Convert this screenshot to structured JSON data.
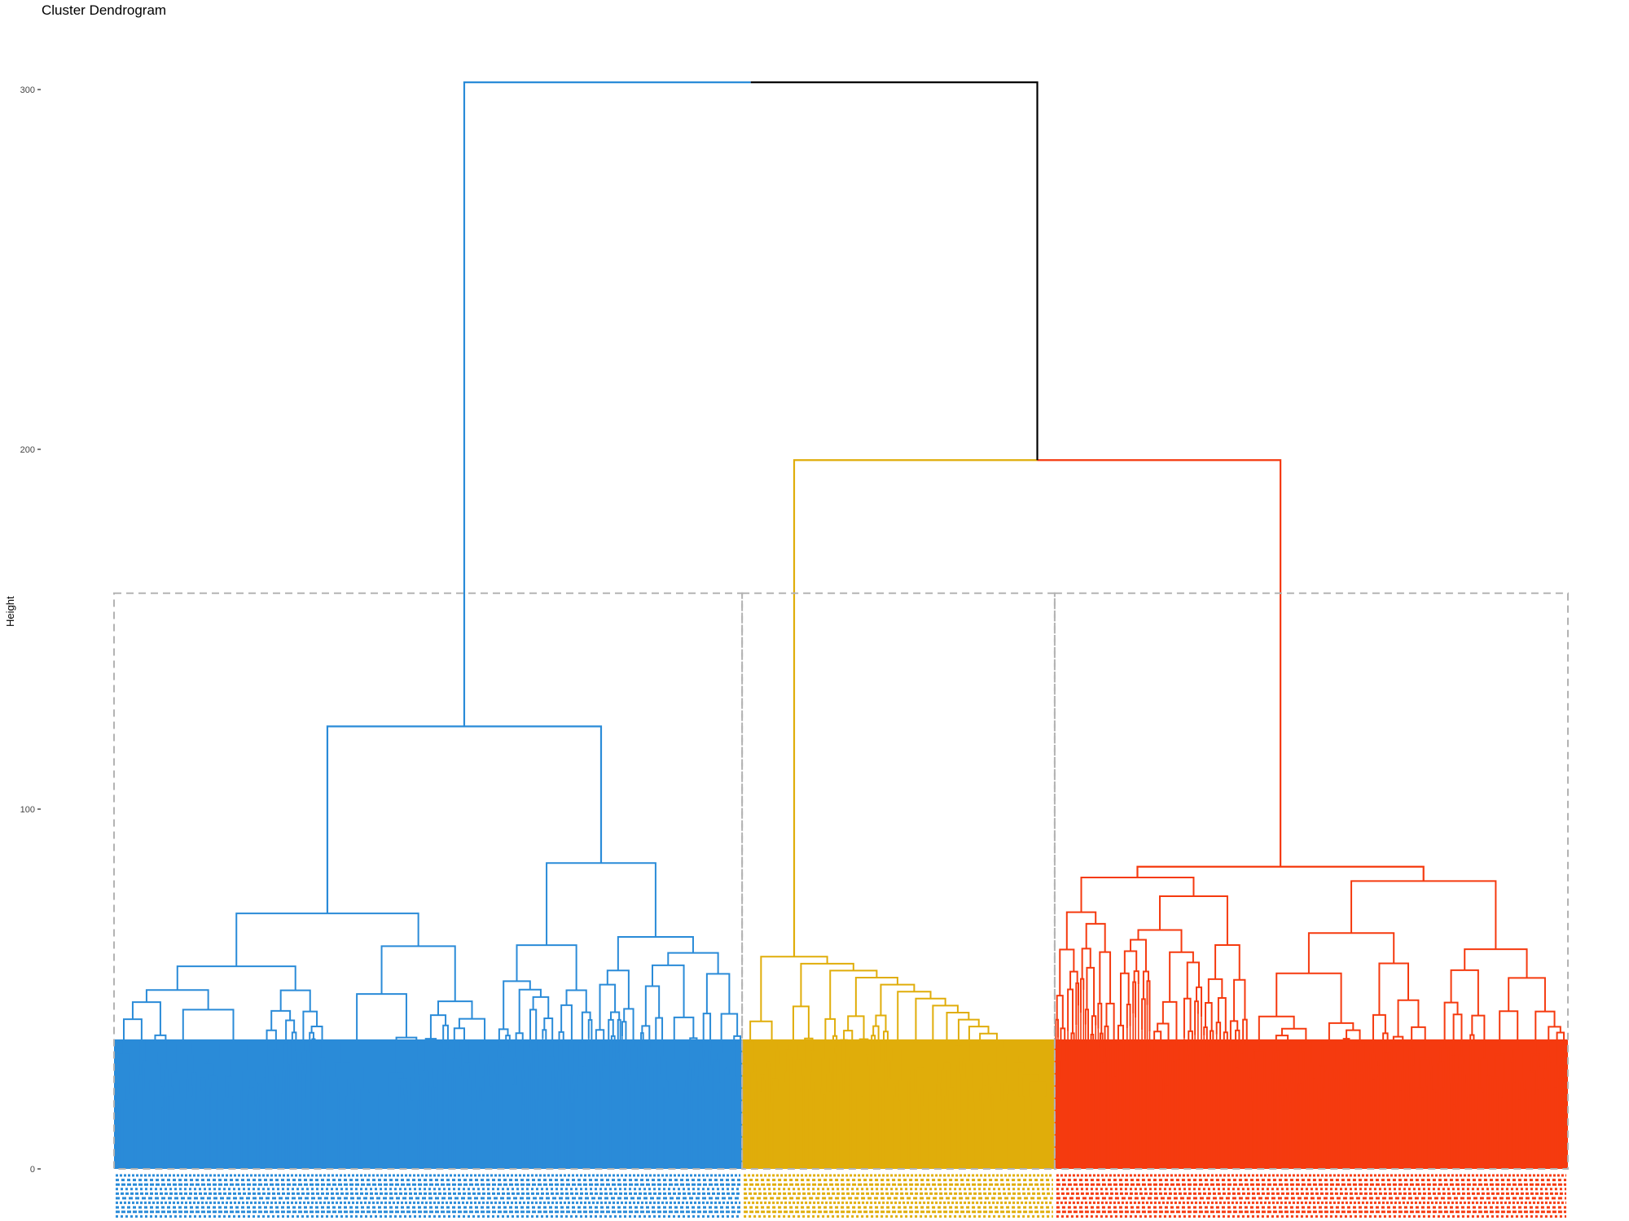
{
  "chart_data": {
    "type": "dendrogram",
    "title": "Cluster Dendrogram",
    "xlabel": "",
    "ylabel": "Height",
    "ylim": [
      0,
      305
    ],
    "y_ticks": [
      0,
      100,
      200,
      300
    ],
    "root_height": 302,
    "cut_height": 160,
    "colors": {
      "root_link": "#000000",
      "cut_box": "#b3b3b3"
    },
    "clusters": [
      {
        "cluster": 1,
        "color": "#2a8bd8",
        "leaf_range": [
          0,
          0.432
        ],
        "merge_height": 123,
        "main_branches": [
          {
            "height": 71,
            "leaf_range": [
              0,
              0.26
            ]
          },
          {
            "height": 85,
            "leaf_range": [
              0.26,
              0.432
            ]
          }
        ]
      },
      {
        "cluster": 2,
        "color": "#e0ad0a",
        "leaf_range": [
          0.432,
          0.647
        ],
        "merge_height": 59,
        "main_branches": []
      },
      {
        "cluster": 3,
        "color": "#f53a0f",
        "leaf_range": [
          0.647,
          1.0
        ],
        "merge_height": 84,
        "main_branches": [
          {
            "height": 81,
            "leaf_range": [
              0.647,
              0.78
            ]
          },
          {
            "height": 80,
            "leaf_range": [
              0.78,
              1.0
            ]
          }
        ]
      }
    ],
    "merges": [
      {
        "clusters": [
          2,
          3
        ],
        "height": 197
      },
      {
        "clusters": [
          1,
          "2+3"
        ],
        "height": 302
      }
    ]
  }
}
